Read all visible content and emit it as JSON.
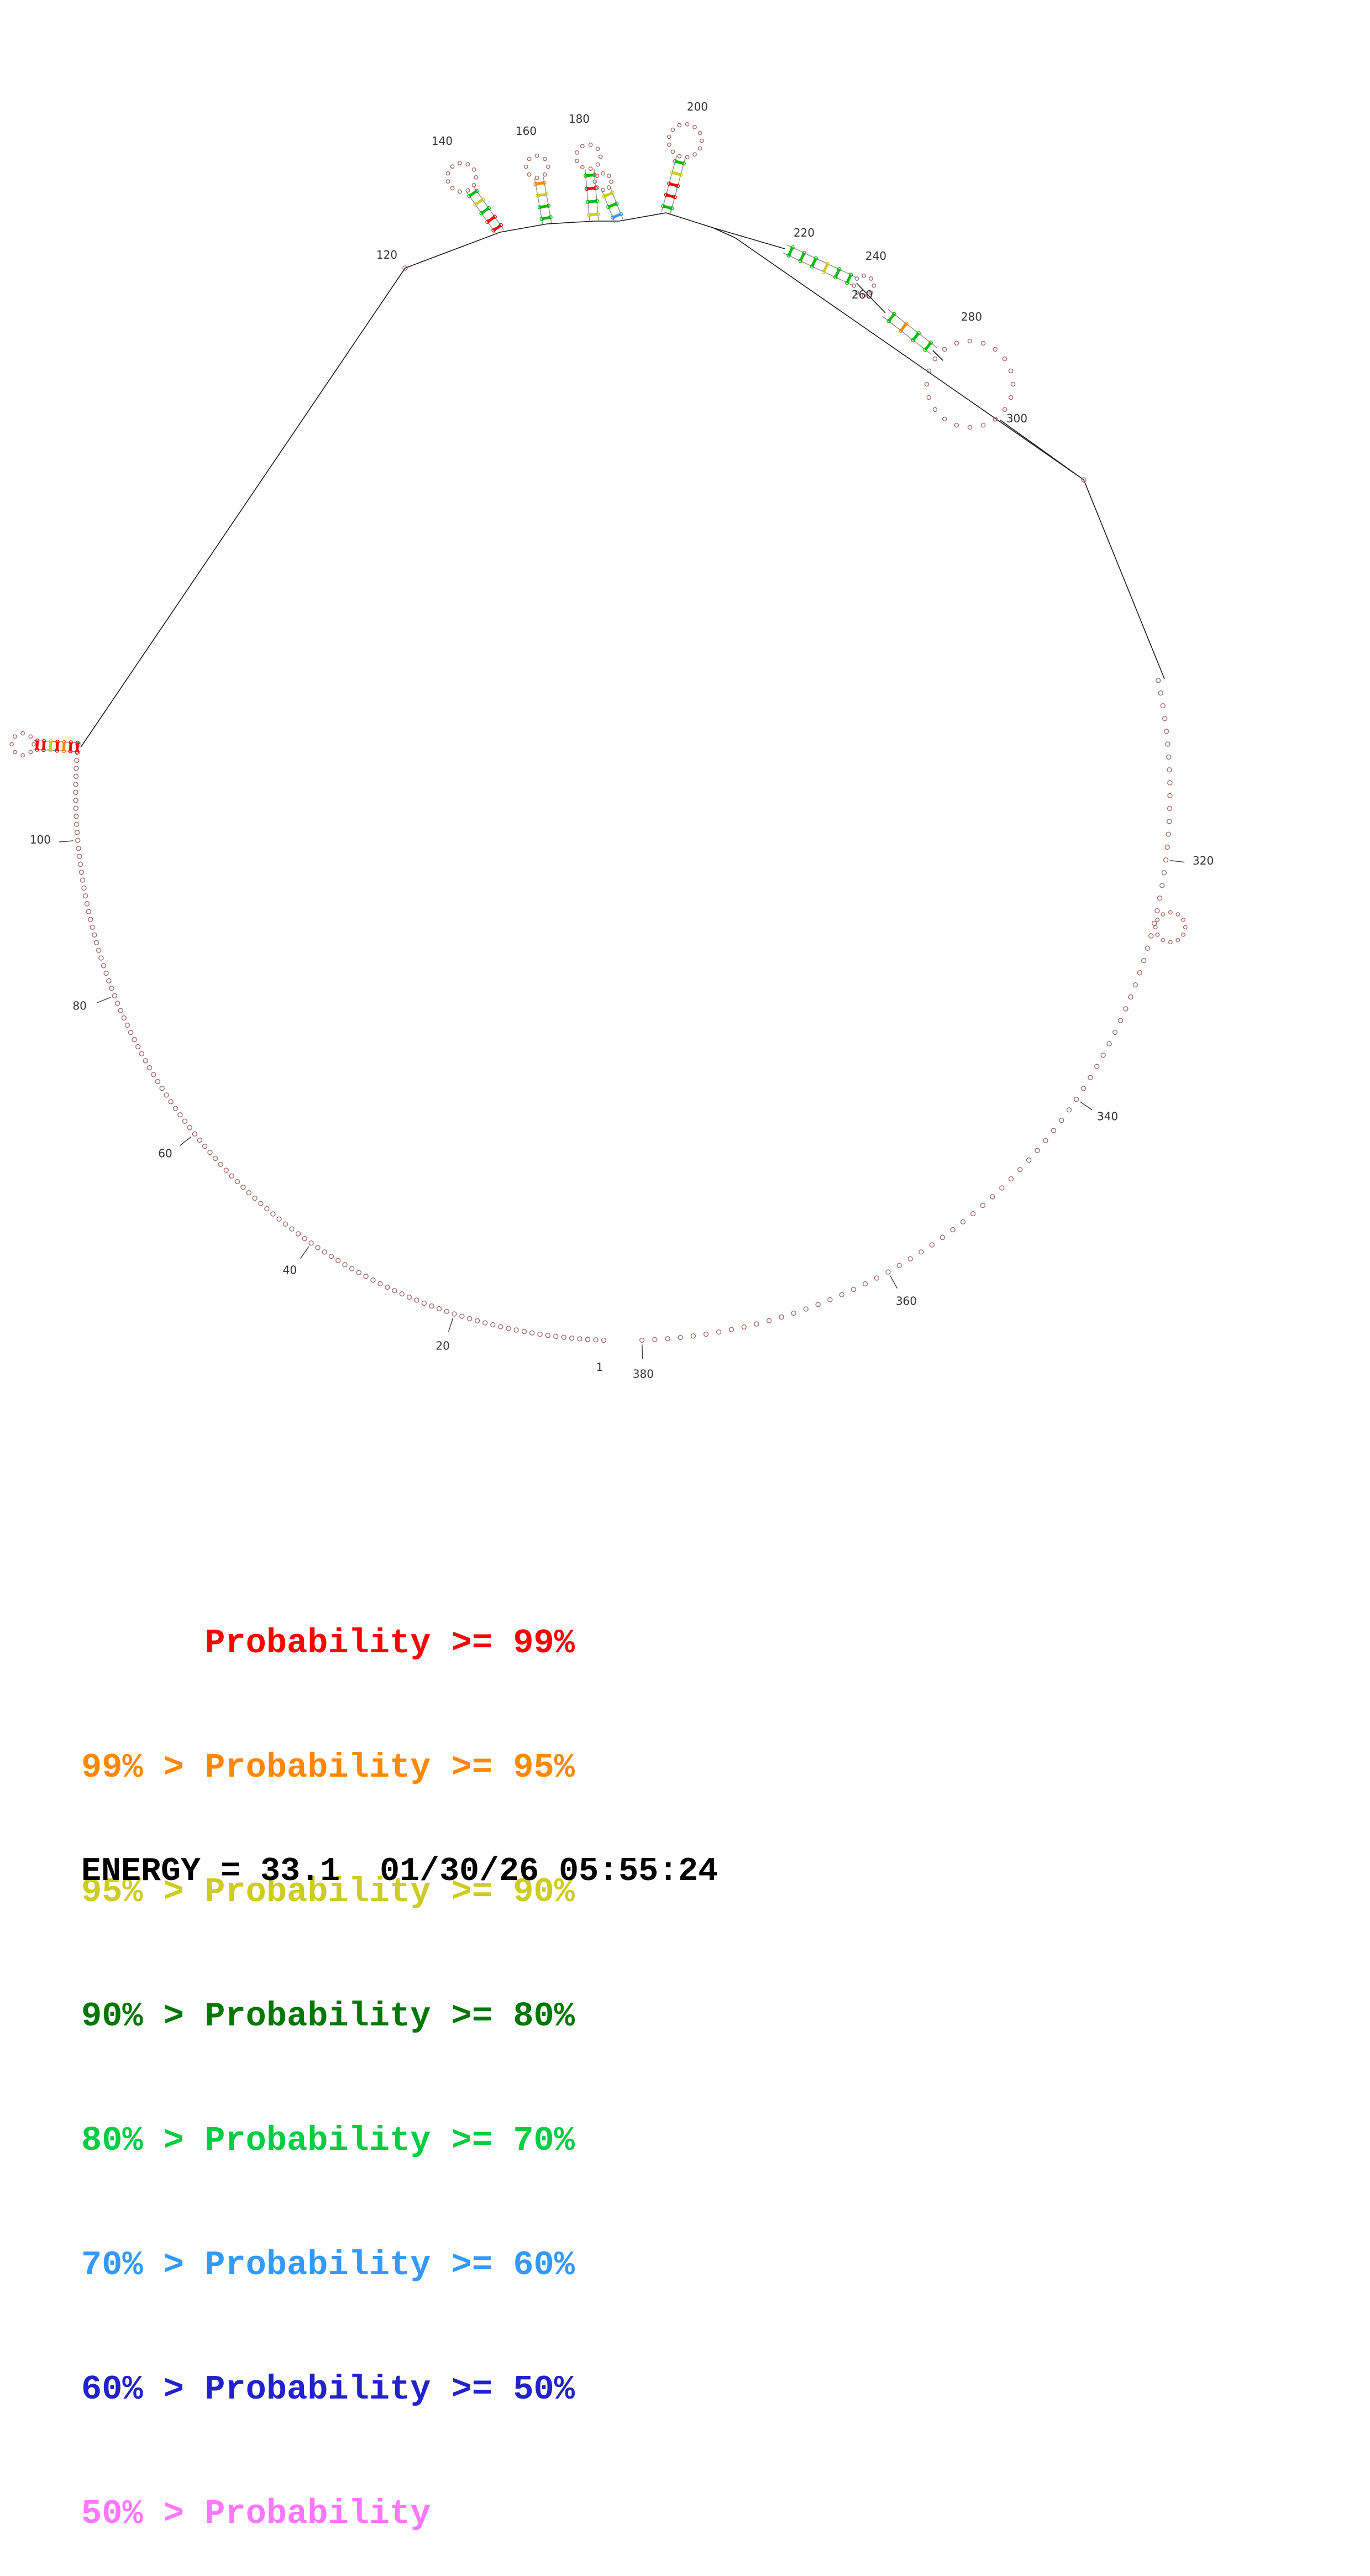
{
  "figure": {
    "background": "#ffffff"
  },
  "structure": {
    "length_label": "380",
    "ticks": [
      {
        "res": 20,
        "text": "20"
      },
      {
        "res": 40,
        "text": "40"
      },
      {
        "res": 60,
        "text": "60"
      },
      {
        "res": 80,
        "text": "80"
      },
      {
        "res": 100,
        "text": "100"
      },
      {
        "res": 320,
        "text": "320"
      },
      {
        "res": 340,
        "text": "340"
      },
      {
        "res": 360,
        "text": "360"
      },
      {
        "res": 380,
        "text": "380"
      }
    ],
    "point_labels": [
      {
        "text": "120"
      },
      {
        "text": "140"
      },
      {
        "text": "160"
      },
      {
        "text": "180"
      },
      {
        "text": "200"
      },
      {
        "text": "220"
      },
      {
        "text": "240"
      },
      {
        "text": "260"
      },
      {
        "text": "280"
      },
      {
        "text": "300"
      },
      {
        "text": "1"
      }
    ],
    "stems": [
      {
        "id": "hairpin-140",
        "rungs": [
          "#ff0000",
          "#ff0000",
          "#00bb00",
          "#cccc22",
          "#00bb00"
        ]
      },
      {
        "id": "hairpin-160",
        "rungs": [
          "#00bb00",
          "#00bb00",
          "#cccc22",
          "#ff8800"
        ]
      },
      {
        "id": "hairpin-180",
        "rungs": [
          "#cccc22",
          "#00bb00",
          "#ff0000",
          "#00bb00"
        ]
      },
      {
        "id": "hairpin-200",
        "rungs": [
          "#00bb00",
          "#ff0000",
          "#ff0000",
          "#cccc22",
          "#00bb00"
        ]
      },
      {
        "id": "hairpin-small",
        "rungs": [
          "#3399ff",
          "#00bb00",
          "#cccc22"
        ]
      },
      {
        "id": "stem-220-240",
        "rungs": [
          "#00bb00",
          "#00bb00",
          "#00bb00",
          "#cccc22",
          "#00bb00",
          "#00bb00"
        ]
      },
      {
        "id": "stem-260",
        "rungs": [
          "#00bb00",
          "#ff8800",
          "#00bb00",
          "#00bb00"
        ]
      },
      {
        "id": "left-hairpin",
        "rungs": [
          "#ff0000",
          "#ff0000",
          "#ff8800",
          "#ff0000",
          "#cccc22",
          "#ff0000",
          "#ff0000"
        ]
      }
    ],
    "colors": {
      "backbone": "#1a1a1a",
      "strand": "#888888",
      "nucleotide": "#aa6666",
      "label": "#333333"
    }
  },
  "legend": {
    "rows": [
      {
        "text": "      Probability >= 99%",
        "color": "#ff0000"
      },
      {
        "text": "99% > Probability >= 95%",
        "color": "#ff8800"
      },
      {
        "text": "95% > Probability >= 90%",
        "color": "#cccc22"
      },
      {
        "text": "90% > Probability >= 80%",
        "color": "#007700"
      },
      {
        "text": "80% > Probability >= 70%",
        "color": "#00cc44"
      },
      {
        "text": "70% > Probability >= 60%",
        "color": "#3399ff"
      },
      {
        "text": "60% > Probability >= 50%",
        "color": "#2222cc"
      },
      {
        "text": "50% > Probability",
        "color": "#ff77ff"
      }
    ]
  },
  "footer": {
    "energy_line": "ENERGY = 33.1  01/30/26 05:55:24"
  }
}
